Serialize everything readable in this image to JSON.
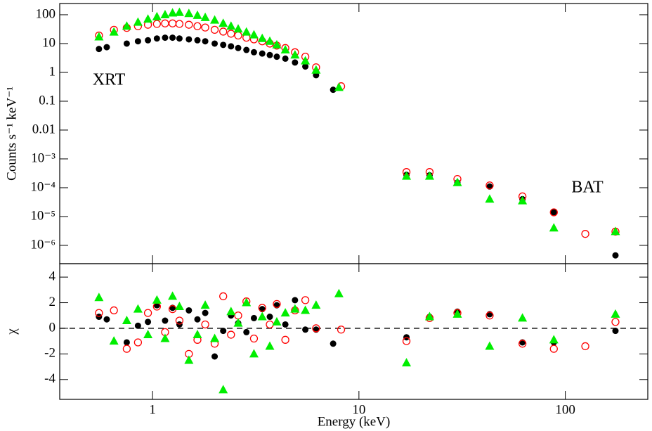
{
  "chart_data": [
    {
      "type": "scatter",
      "log_x": true,
      "log_y": true,
      "y_label": "Counts s⁻¹ keV⁻¹",
      "annotations": [
        "XRT",
        "BAT"
      ],
      "xlim": [
        0.355,
        251
      ],
      "ylim": [
        2.32e-07,
        245
      ],
      "xticks": [
        1,
        10,
        100
      ],
      "yticks": [
        100,
        10,
        1,
        0.1,
        0.01,
        {
          "value": 0.001,
          "label": "10⁻³"
        },
        {
          "value": 0.0001,
          "label": "10⁻⁴"
        },
        {
          "value": 1e-05,
          "label": "10⁻⁵"
        },
        {
          "value": 1e-06,
          "label": "10⁻⁶"
        }
      ],
      "series": [
        {
          "color": "#000000",
          "marker": "filled-circle",
          "x": [
            0.55,
            0.6,
            0.75,
            0.85,
            0.95,
            1.05,
            1.15,
            1.25,
            1.35,
            1.5,
            1.65,
            1.8,
            2.0,
            2.2,
            2.4,
            2.6,
            2.85,
            3.1,
            3.4,
            3.7,
            4.0,
            4.4,
            4.9,
            5.5,
            6.2,
            7.5,
            17,
            22,
            30,
            43,
            62,
            88,
            175
          ],
          "values": [
            6.5,
            7.5,
            10,
            12,
            13,
            15,
            16,
            16,
            15,
            14,
            13,
            12,
            10,
            9,
            8,
            7,
            6,
            5,
            4.5,
            4,
            3.5,
            3,
            2.2,
            1.6,
            0.8,
            0.25,
            0.00028,
            0.00027,
            0.00015,
            0.00011,
            4e-05,
            1.4e-05,
            4.5e-07
          ]
        },
        {
          "color": "#ff0000",
          "marker": "open-circle",
          "x": [
            0.55,
            0.65,
            0.75,
            0.85,
            0.95,
            1.05,
            1.15,
            1.25,
            1.35,
            1.5,
            1.65,
            1.8,
            2.0,
            2.2,
            2.4,
            2.6,
            2.85,
            3.1,
            3.4,
            3.7,
            4.0,
            4.4,
            4.9,
            5.5,
            6.2,
            8.2,
            17,
            22,
            30,
            43,
            62,
            88,
            125,
            175
          ],
          "values": [
            19,
            30,
            35,
            40,
            45,
            48,
            50,
            50,
            48,
            45,
            40,
            36,
            30,
            26,
            22,
            19,
            16,
            14,
            12,
            10,
            8.5,
            7,
            5,
            3.5,
            1.5,
            0.33,
            0.00035,
            0.00035,
            0.0002,
            0.00012,
            5e-05,
            1.4e-05,
            2.5e-06,
            3e-06
          ]
        },
        {
          "color": "#00ee00",
          "marker": "filled-triangle",
          "x": [
            0.55,
            0.65,
            0.75,
            0.85,
            0.95,
            1.05,
            1.15,
            1.25,
            1.35,
            1.5,
            1.65,
            1.8,
            2.0,
            2.2,
            2.4,
            2.6,
            2.85,
            3.1,
            3.4,
            3.7,
            4.0,
            4.4,
            4.9,
            5.5,
            6.2,
            8.0,
            17,
            22,
            30,
            43,
            62,
            88,
            175
          ],
          "values": [
            17,
            25,
            40,
            55,
            70,
            85,
            100,
            115,
            120,
            110,
            95,
            80,
            65,
            50,
            40,
            32,
            25,
            20,
            15,
            12,
            9,
            6,
            4,
            2.5,
            1.2,
            0.3,
            0.00025,
            0.00025,
            0.00015,
            4e-05,
            3.5e-05,
            4e-06,
            3e-06
          ]
        }
      ]
    },
    {
      "type": "scatter",
      "log_x": true,
      "log_y": false,
      "y_label": "χ",
      "x_label": "Energy (keV)",
      "hline": 0,
      "xlim": [
        0.355,
        251
      ],
      "ylim": [
        -5.55,
        5.05
      ],
      "xticks": [
        1,
        10,
        100
      ],
      "yticks": [
        -4,
        -2,
        0,
        2,
        4
      ],
      "series": [
        {
          "color": "#000000",
          "marker": "filled-circle",
          "x": [
            0.55,
            0.6,
            0.75,
            0.85,
            0.95,
            1.05,
            1.15,
            1.25,
            1.35,
            1.5,
            1.65,
            1.8,
            2.0,
            2.2,
            2.4,
            2.6,
            2.85,
            3.1,
            3.4,
            3.7,
            4.0,
            4.4,
            4.9,
            5.5,
            6.2,
            7.5,
            17,
            22,
            30,
            43,
            62,
            88,
            175
          ],
          "values": [
            0.9,
            0.7,
            -1.1,
            0.2,
            0.5,
            1.8,
            0.6,
            1.6,
            0.3,
            1.4,
            0.7,
            1.2,
            -2.2,
            -0.2,
            1.0,
            0.4,
            -0.3,
            0.8,
            1.5,
            0.9,
            1.8,
            0.3,
            2.2,
            -0.1,
            -0.1,
            -1.2,
            -0.7,
            0.9,
            1.3,
            1.1,
            -1.1,
            -1.1,
            -0.2
          ]
        },
        {
          "color": "#ff0000",
          "marker": "open-circle",
          "x": [
            0.55,
            0.65,
            0.75,
            0.85,
            0.95,
            1.05,
            1.15,
            1.25,
            1.35,
            1.5,
            1.65,
            1.8,
            2.0,
            2.2,
            2.4,
            2.6,
            2.85,
            3.1,
            3.4,
            3.7,
            4.0,
            4.4,
            4.9,
            5.5,
            6.2,
            8.2,
            17,
            22,
            30,
            43,
            62,
            88,
            125,
            175
          ],
          "values": [
            1.2,
            1.4,
            -1.6,
            -1.1,
            1.2,
            1.7,
            -0.3,
            1.5,
            0.6,
            -2.0,
            -0.9,
            0.3,
            -1.2,
            2.5,
            -0.5,
            1.0,
            2.1,
            -0.8,
            1.6,
            0.3,
            1.9,
            -0.9,
            1.4,
            2.2,
            0.0,
            -0.1,
            -1.0,
            0.8,
            1.2,
            1.0,
            -1.2,
            -1.6,
            -1.4,
            0.5
          ]
        },
        {
          "color": "#00ee00",
          "marker": "filled-triangle",
          "x": [
            0.55,
            0.65,
            0.75,
            0.85,
            0.95,
            1.05,
            1.15,
            1.25,
            1.35,
            1.5,
            1.65,
            1.8,
            2.0,
            2.2,
            2.4,
            2.6,
            2.85,
            3.1,
            3.4,
            3.7,
            4.0,
            4.4,
            4.9,
            5.5,
            6.2,
            8.0,
            17,
            22,
            30,
            43,
            62,
            88,
            175
          ],
          "values": [
            2.4,
            -1.0,
            0.6,
            1.5,
            -0.5,
            2.2,
            -0.8,
            2.5,
            1.7,
            -2.5,
            -0.5,
            1.8,
            -0.8,
            -4.8,
            1.3,
            0.4,
            2.0,
            -2.0,
            0.9,
            -1.4,
            0.5,
            1.2,
            1.5,
            1.4,
            1.8,
            2.7,
            -2.7,
            0.9,
            1.1,
            -1.4,
            0.8,
            -0.9,
            1.1
          ]
        }
      ]
    }
  ]
}
